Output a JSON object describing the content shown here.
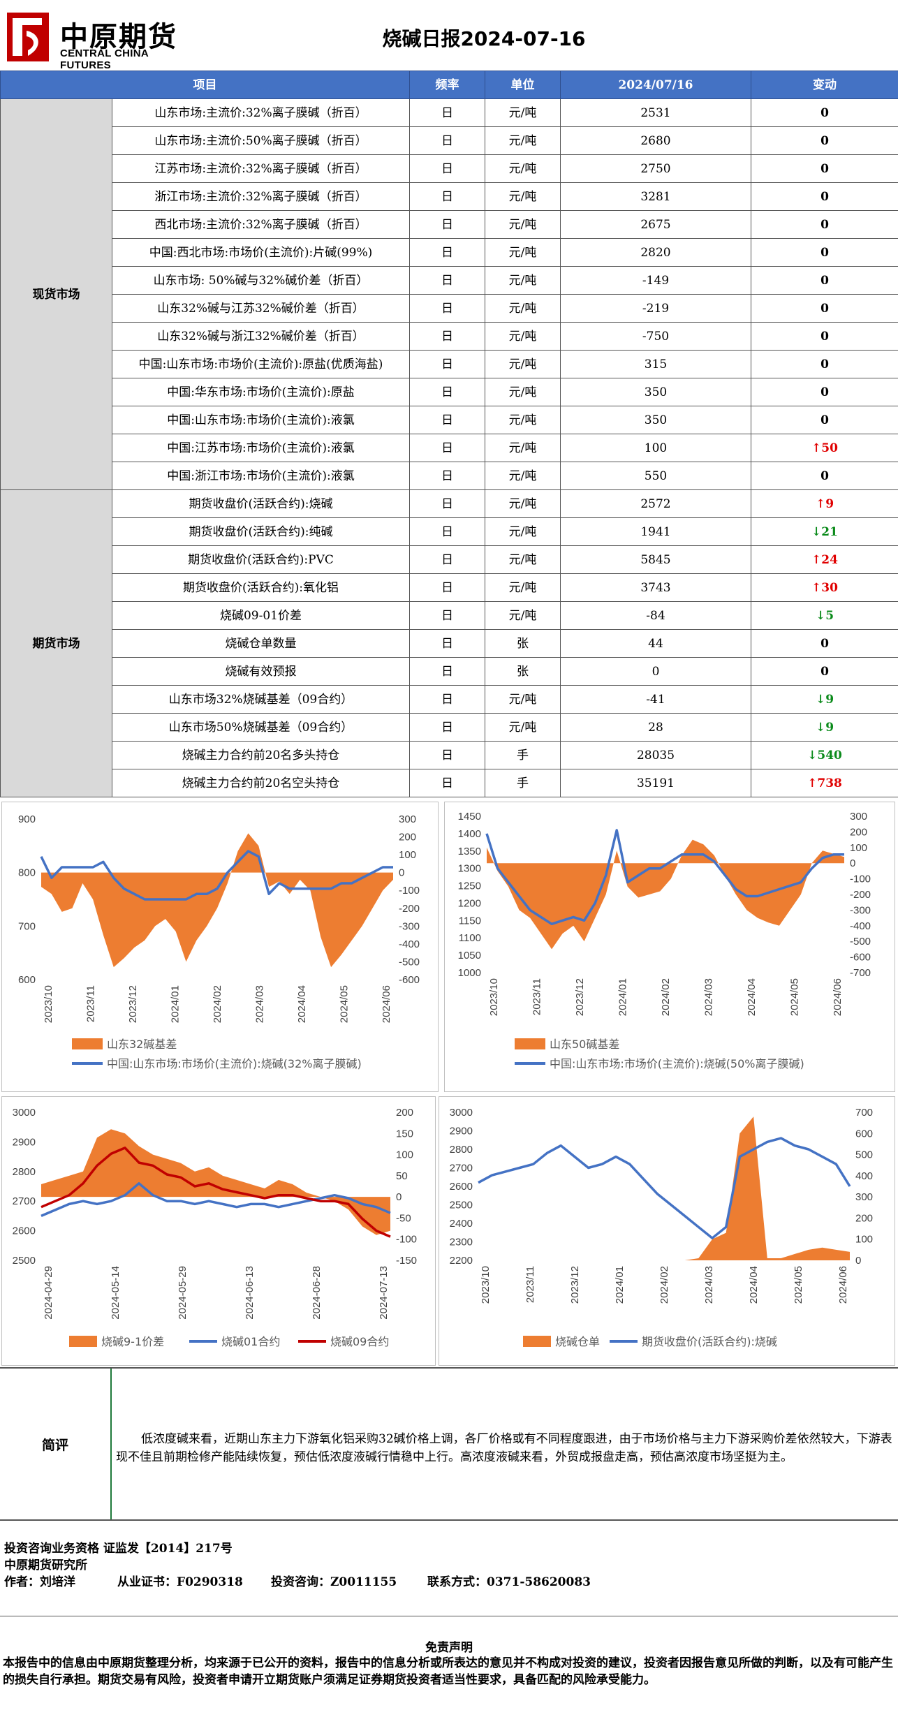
{
  "header": {
    "logo_cn": "中原期货",
    "logo_en": "CENTRAL CHINA FUTURES",
    "title": "烧碱日报2024-07-16"
  },
  "table": {
    "columns": [
      "项目",
      "频率",
      "单位",
      "2024/07/16",
      "变动"
    ],
    "sections": [
      {
        "name": "现货市场",
        "rows": [
          {
            "item": "山东市场:主流价:32%离子膜碱（折百）",
            "freq": "日",
            "unit": "元/吨",
            "value": "2531",
            "change": "0",
            "dir": "zero"
          },
          {
            "item": "山东市场:主流价:50%离子膜碱（折百）",
            "freq": "日",
            "unit": "元/吨",
            "value": "2680",
            "change": "0",
            "dir": "zero"
          },
          {
            "item": "江苏市场:主流价:32%离子膜碱（折百）",
            "freq": "日",
            "unit": "元/吨",
            "value": "2750",
            "change": "0",
            "dir": "zero"
          },
          {
            "item": "浙江市场:主流价:32%离子膜碱（折百）",
            "freq": "日",
            "unit": "元/吨",
            "value": "3281",
            "change": "0",
            "dir": "zero"
          },
          {
            "item": "西北市场:主流价:32%离子膜碱（折百）",
            "freq": "日",
            "unit": "元/吨",
            "value": "2675",
            "change": "0",
            "dir": "zero"
          },
          {
            "item": "中国:西北市场:市场价(主流价):片碱(99%)",
            "freq": "日",
            "unit": "元/吨",
            "value": "2820",
            "change": "0",
            "dir": "zero"
          },
          {
            "item": "山东市场: 50%碱与32%碱价差（折百）",
            "freq": "日",
            "unit": "元/吨",
            "value": "-149",
            "change": "0",
            "dir": "zero"
          },
          {
            "item": "山东32%碱与江苏32%碱价差（折百）",
            "freq": "日",
            "unit": "元/吨",
            "value": "-219",
            "change": "0",
            "dir": "zero"
          },
          {
            "item": "山东32%碱与浙江32%碱价差（折百）",
            "freq": "日",
            "unit": "元/吨",
            "value": "-750",
            "change": "0",
            "dir": "zero"
          },
          {
            "item": "中国:山东市场:市场价(主流价):原盐(优质海盐)",
            "freq": "日",
            "unit": "元/吨",
            "value": "315",
            "change": "0",
            "dir": "zero"
          },
          {
            "item": "中国:华东市场:市场价(主流价):原盐",
            "freq": "日",
            "unit": "元/吨",
            "value": "350",
            "change": "0",
            "dir": "zero"
          },
          {
            "item": "中国:山东市场:市场价(主流价):液氯",
            "freq": "日",
            "unit": "元/吨",
            "value": "350",
            "change": "0",
            "dir": "zero"
          },
          {
            "item": "中国:江苏市场:市场价(主流价):液氯",
            "freq": "日",
            "unit": "元/吨",
            "value": "100",
            "change": "↑50",
            "dir": "up"
          },
          {
            "item": "中国:浙江市场:市场价(主流价):液氯",
            "freq": "日",
            "unit": "元/吨",
            "value": "550",
            "change": "0",
            "dir": "zero"
          }
        ]
      },
      {
        "name": "期货市场",
        "rows": [
          {
            "item": "期货收盘价(活跃合约):烧碱",
            "freq": "日",
            "unit": "元/吨",
            "value": "2572",
            "change": "↑9",
            "dir": "up"
          },
          {
            "item": "期货收盘价(活跃合约):纯碱",
            "freq": "日",
            "unit": "元/吨",
            "value": "1941",
            "change": "↓21",
            "dir": "dn"
          },
          {
            "item": "期货收盘价(活跃合约):PVC",
            "freq": "日",
            "unit": "元/吨",
            "value": "5845",
            "change": "↑24",
            "dir": "up"
          },
          {
            "item": "期货收盘价(活跃合约):氧化铝",
            "freq": "日",
            "unit": "元/吨",
            "value": "3743",
            "change": "↑30",
            "dir": "up"
          },
          {
            "item": "烧碱09-01价差",
            "freq": "日",
            "unit": "元/吨",
            "value": "-84",
            "change": "↓5",
            "dir": "dn"
          },
          {
            "item": "烧碱仓单数量",
            "freq": "日",
            "unit": "张",
            "value": "44",
            "change": "0",
            "dir": "zero"
          },
          {
            "item": "烧碱有效预报",
            "freq": "日",
            "unit": "张",
            "value": "0",
            "change": "0",
            "dir": "zero"
          },
          {
            "item": "山东市场32%烧碱基差（09合约）",
            "freq": "日",
            "unit": "元/吨",
            "value": "-41",
            "change": "↓9",
            "dir": "dn"
          },
          {
            "item": "山东市场50%烧碱基差（09合约）",
            "freq": "日",
            "unit": "元/吨",
            "value": "28",
            "change": "↓9",
            "dir": "dn"
          },
          {
            "item": "烧碱主力合约前20名多头持仓",
            "freq": "日",
            "unit": "手",
            "value": "28035",
            "change": "↓540",
            "dir": "dn"
          },
          {
            "item": "烧碱主力合约前20名空头持仓",
            "freq": "日",
            "unit": "手",
            "value": "35191",
            "change": "↑738",
            "dir": "up"
          }
        ]
      }
    ]
  },
  "chart_data": [
    {
      "type": "area+line",
      "series": [
        {
          "name": "山东32碱基差",
          "type": "area",
          "axis": "right",
          "values": [
            -80,
            -120,
            -220,
            -200,
            -60,
            -150,
            -350,
            -530,
            -480,
            -420,
            -380,
            -300,
            -260,
            -330,
            -500,
            -380,
            -300,
            -200,
            -60,
            120,
            220,
            150,
            -80,
            -50,
            -120,
            -40,
            -100,
            -360,
            -530,
            -460,
            -380,
            -300,
            -200,
            -100,
            -40
          ]
        },
        {
          "name": "中国:山东市场:市场价(主流价):烧碱(32%离子膜碱)",
          "type": "line",
          "axis": "left",
          "values": [
            830,
            790,
            810,
            810,
            810,
            810,
            820,
            790,
            770,
            760,
            750,
            750,
            750,
            750,
            750,
            760,
            760,
            770,
            800,
            820,
            840,
            830,
            760,
            780,
            770,
            770,
            770,
            770,
            770,
            780,
            780,
            790,
            800,
            810,
            810
          ]
        }
      ],
      "x_ticks": [
        "2023/10",
        "2023/11",
        "2023/12",
        "2024/01",
        "2024/02",
        "2024/03",
        "2024/04",
        "2024/05",
        "2024/06"
      ],
      "yleft": [
        600,
        900
      ],
      "yleft_ticks": [
        "600",
        "700",
        "800",
        "900"
      ],
      "yright": [
        -600,
        300
      ],
      "yright_ticks": [
        "-600",
        "-500",
        "-400",
        "-300",
        "-200",
        "-100",
        "0",
        "100",
        "200",
        "300"
      ]
    },
    {
      "type": "area+line",
      "series": [
        {
          "name": "山东50碱基差",
          "type": "area",
          "axis": "right",
          "values": [
            100,
            -50,
            -150,
            -300,
            -350,
            -450,
            -550,
            -450,
            -400,
            -500,
            -350,
            -200,
            80,
            -150,
            -220,
            -200,
            -180,
            -100,
            50,
            150,
            120,
            50,
            -80,
            -200,
            -300,
            -350,
            -380,
            -400,
            -300,
            -200,
            0,
            80,
            60,
            40
          ]
        },
        {
          "name": "中国:山东市场:市场价(主流价):烧碱(50%离子膜碱)",
          "type": "line",
          "axis": "left",
          "values": [
            1400,
            1300,
            1260,
            1220,
            1180,
            1160,
            1140,
            1150,
            1160,
            1150,
            1200,
            1280,
            1410,
            1260,
            1280,
            1300,
            1300,
            1320,
            1340,
            1340,
            1340,
            1320,
            1280,
            1240,
            1220,
            1220,
            1230,
            1240,
            1250,
            1260,
            1300,
            1330,
            1340,
            1340
          ]
        }
      ],
      "x_ticks": [
        "2023/10",
        "2023/11",
        "2023/12",
        "2024/01",
        "2024/02",
        "2024/03",
        "2024/04",
        "2024/05",
        "2024/06"
      ],
      "yleft": [
        1000,
        1450
      ],
      "yleft_ticks": [
        "1000",
        "1050",
        "1100",
        "1150",
        "1200",
        "1250",
        "1300",
        "1350",
        "1400",
        "1450"
      ],
      "yright": [
        -700,
        300
      ],
      "yright_ticks": [
        "-700",
        "-600",
        "-500",
        "-400",
        "-300",
        "-200",
        "-100",
        "0",
        "100",
        "200",
        "300"
      ]
    },
    {
      "type": "area+line",
      "series": [
        {
          "name": "烧碱9-1价差",
          "type": "area",
          "axis": "right",
          "values": [
            30,
            40,
            50,
            60,
            140,
            160,
            150,
            120,
            100,
            90,
            80,
            60,
            70,
            50,
            40,
            30,
            20,
            40,
            30,
            10,
            0,
            -10,
            -30,
            -70,
            -90,
            -80
          ]
        },
        {
          "name": "烧碱01合约",
          "type": "line",
          "axis": "left",
          "values": [
            2650,
            2670,
            2690,
            2700,
            2690,
            2700,
            2720,
            2760,
            2720,
            2700,
            2700,
            2690,
            2700,
            2690,
            2680,
            2690,
            2690,
            2680,
            2690,
            2700,
            2710,
            2720,
            2710,
            2690,
            2680,
            2660
          ]
        },
        {
          "name": "烧碱09合约",
          "type": "line",
          "axis": "left",
          "values": [
            2680,
            2700,
            2720,
            2760,
            2820,
            2860,
            2880,
            2830,
            2820,
            2790,
            2780,
            2750,
            2760,
            2740,
            2730,
            2720,
            2710,
            2720,
            2720,
            2710,
            2700,
            2700,
            2690,
            2640,
            2600,
            2580
          ]
        }
      ],
      "x_ticks": [
        "2024-04-29",
        "2024-05-14",
        "2024-05-29",
        "2024-06-13",
        "2024-06-28",
        "2024-07-13"
      ],
      "yleft": [
        2500,
        3000
      ],
      "yleft_ticks": [
        "2500",
        "2600",
        "2700",
        "2800",
        "2900",
        "3000"
      ],
      "yright": [
        -150,
        200
      ],
      "yright_ticks": [
        "-150",
        "-100",
        "-50",
        "0",
        "50",
        "100",
        "150",
        "200"
      ]
    },
    {
      "type": "area+line",
      "series": [
        {
          "name": "烧碱仓单",
          "type": "area",
          "axis": "right",
          "values": [
            0,
            0,
            0,
            0,
            0,
            0,
            0,
            0,
            0,
            0,
            0,
            0,
            0,
            0,
            0,
            0,
            10,
            100,
            130,
            600,
            680,
            10,
            10,
            30,
            50,
            60,
            50,
            40
          ]
        },
        {
          "name": "期货收盘价(活跃合约):烧碱",
          "type": "line",
          "axis": "left",
          "values": [
            2620,
            2660,
            2680,
            2700,
            2720,
            2780,
            2820,
            2760,
            2700,
            2720,
            2760,
            2720,
            2640,
            2560,
            2500,
            2440,
            2380,
            2320,
            2380,
            2760,
            2800,
            2840,
            2860,
            2820,
            2800,
            2760,
            2720,
            2600
          ]
        }
      ],
      "x_ticks": [
        "2023/10",
        "2023/11",
        "2023/12",
        "2024/01",
        "2024/02",
        "2024/03",
        "2024/04",
        "2024/05",
        "2024/06"
      ],
      "yleft": [
        2200,
        3000
      ],
      "yleft_ticks": [
        "2200",
        "2300",
        "2400",
        "2500",
        "2600",
        "2700",
        "2800",
        "2900",
        "3000"
      ],
      "yright": [
        0,
        700
      ],
      "yright_ticks": [
        "0",
        "100",
        "200",
        "300",
        "400",
        "500",
        "600",
        "700"
      ]
    }
  ],
  "summary": {
    "label": "简评",
    "text": "低浓度碱来看，近期山东主力下游氧化铝采购32碱价格上调，各厂价格或有不同程度跟进，由于市场价格与主力下游采购价差依然较大，下游表现不佳且前期检修产能陆续恢复，预估低浓度液碱行情稳中上行。高浓度液碱来看，外贸成报盘走高，预估高浓度市场坚挺为主。"
  },
  "footer": {
    "line1": "投资咨询业务资格  证监发【2014】217号",
    "line2": "中原期货研究所",
    "author": "作者：刘培洋",
    "cert": "从业证书：F0290318",
    "consult": "投资咨询：Z0011155",
    "contact": "联系方式：0371-58620083"
  },
  "disclaimer": {
    "title": "免责声明",
    "text": "本报告中的信息由中原期货整理分析，均来源于已公开的资料，报告中的信息分析或所表达的意见并不构成对投资的建议，投资者因报告意见所做的判断，以及有可能产生的损失自行承担。期货交易有风险，投资者申请开立期货账户须满足证券期货投资者适当性要求，具备匹配的风险承受能力。"
  },
  "colors": {
    "header_blue": "#4472c4",
    "area_orange": "#ed7d31",
    "line_blue": "#4472c4",
    "line_red": "#c00000",
    "up": "#e00000",
    "down": "#0a8a1a"
  }
}
